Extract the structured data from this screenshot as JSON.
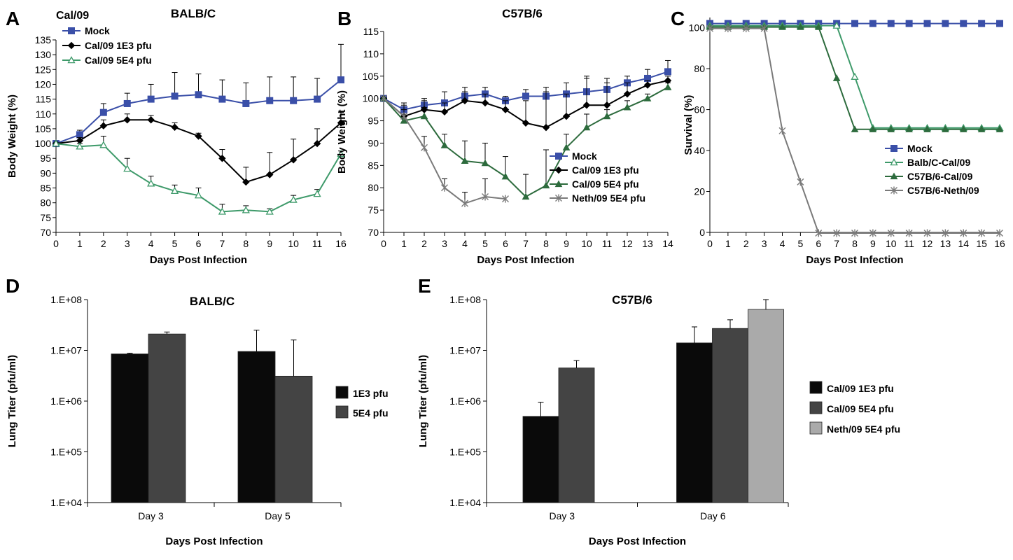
{
  "chart_data": [
    {
      "panel": "A",
      "type": "line",
      "title": "BALB/C",
      "subtitle": "Cal/09",
      "xlabel": "Days Post Infection",
      "ylabel": "Body Weight (%)",
      "x": [
        "0",
        "1",
        "2",
        "3",
        "4",
        "5",
        "6",
        "7",
        "8",
        "9",
        "10",
        "11",
        "16"
      ],
      "ylim": [
        70,
        135
      ],
      "yticks": [
        70,
        75,
        80,
        85,
        90,
        95,
        100,
        105,
        110,
        115,
        120,
        125,
        130,
        135
      ],
      "legend_position": "top-left",
      "grid": false,
      "series": [
        {
          "name": "Mock",
          "color": "#3a4fa8",
          "marker": "square-filled",
          "values": [
            100,
            103,
            110.5,
            113.5,
            115,
            116,
            116.5,
            115,
            113.5,
            114.5,
            114.5,
            115,
            121.5
          ],
          "errors": [
            0,
            1.5,
            3,
            3.5,
            5,
            8,
            7,
            6.5,
            7,
            8,
            8,
            7,
            12
          ]
        },
        {
          "name": "Cal/09 1E3 pfu",
          "color": "#000000",
          "marker": "diamond-filled",
          "values": [
            100,
            101,
            106,
            108,
            108,
            105.5,
            102.5,
            95,
            87,
            89.5,
            94.5,
            100,
            107
          ],
          "errors": [
            0,
            1,
            2,
            2,
            1.5,
            1.5,
            1,
            3,
            5,
            7.5,
            7,
            5,
            3.5
          ]
        },
        {
          "name": "Cal/09 5E4 pfu",
          "color": "#3e9a6a",
          "marker": "triangle-open",
          "values": [
            100,
            99,
            99.5,
            91.5,
            86.5,
            84,
            82.5,
            77,
            77.5,
            77,
            81,
            83,
            96.5
          ],
          "errors": [
            0,
            1,
            3,
            3.5,
            2.5,
            2,
            2.5,
            2.5,
            1.5,
            1,
            1.5,
            1.5,
            1
          ]
        }
      ]
    },
    {
      "panel": "B",
      "type": "line",
      "title": "C57B/6",
      "xlabel": "Days Post Infection",
      "ylabel": "Body Weight (%)",
      "x": [
        "0",
        "1",
        "2",
        "3",
        "4",
        "5",
        "6",
        "7",
        "8",
        "9",
        "10",
        "11",
        "12",
        "13",
        "14"
      ],
      "ylim": [
        70,
        115
      ],
      "yticks": [
        70,
        75,
        80,
        85,
        90,
        95,
        100,
        105,
        110,
        115
      ],
      "legend_position": "right",
      "grid": false,
      "series": [
        {
          "name": "Mock",
          "color": "#3a4fa8",
          "marker": "square-filled",
          "values": [
            100,
            97.5,
            98.5,
            99,
            100.5,
            101,
            99.5,
            100.5,
            100.5,
            101,
            101.5,
            102,
            103.5,
            104.5,
            106
          ],
          "errors": [
            0,
            1.5,
            1.5,
            2.5,
            2,
            1.5,
            1,
            1.5,
            2,
            2.5,
            3.5,
            2.5,
            1.5,
            2,
            2.5
          ]
        },
        {
          "name": "Cal/09 1E3 pfu",
          "color": "#000000",
          "marker": "diamond-filled",
          "values": [
            100,
            96,
            97.5,
            97,
            99.5,
            99,
            97.5,
            94.5,
            93.5,
            96,
            98.5,
            98.5,
            101,
            103,
            104
          ],
          "errors": [
            0,
            1.5,
            2,
            2,
            2,
            2,
            2,
            5,
            8,
            5,
            6,
            5,
            2.5,
            1,
            1
          ]
        },
        {
          "name": "Cal/09 5E4 pfu",
          "color": "#2d6b3d",
          "marker": "triangle-filled",
          "values": [
            100,
            95,
            96,
            89.5,
            86,
            85.5,
            82.5,
            78,
            80.5,
            89,
            93.5,
            96,
            98,
            100,
            102.5
          ],
          "errors": [
            0,
            1,
            2,
            2.5,
            4.5,
            4.5,
            4.5,
            5,
            8,
            3,
            3,
            1.5,
            1.5,
            1,
            1
          ]
        },
        {
          "name": "Neth/09 5E4 pfu",
          "color": "#7a7a7a",
          "marker": "star",
          "values": [
            100,
            96,
            89,
            80,
            76.5,
            78,
            77.5,
            null,
            null,
            null,
            null,
            null,
            null,
            null,
            null
          ],
          "errors": [
            0,
            2.5,
            2.5,
            2,
            2.5,
            4,
            0,
            null,
            null,
            null,
            null,
            null,
            null,
            null,
            null
          ]
        }
      ]
    },
    {
      "panel": "C",
      "type": "line",
      "xlabel": "Days Post Infection",
      "ylabel": "Survival (%)",
      "x": [
        "0",
        "1",
        "2",
        "3",
        "4",
        "5",
        "6",
        "7",
        "8",
        "9",
        "10",
        "11",
        "12",
        "13",
        "14",
        "15",
        "16"
      ],
      "ylim": [
        0,
        105
      ],
      "yticks": [
        0,
        20,
        40,
        60,
        80,
        100
      ],
      "legend_position": "right",
      "grid": false,
      "series": [
        {
          "name": "Mock",
          "color": "#3a4fa8",
          "marker": "square-filled",
          "values": [
            100,
            100,
            100,
            100,
            100,
            100,
            100,
            100,
            100,
            100,
            100,
            100,
            100,
            100,
            100,
            100,
            100
          ]
        },
        {
          "name": "Balb/C-Cal/09",
          "color": "#3e9a6a",
          "marker": "triangle-open",
          "values": [
            100,
            100,
            100,
            100,
            100,
            100,
            100,
            100,
            75,
            50,
            50,
            50,
            50,
            50,
            50,
            50,
            50
          ]
        },
        {
          "name": "C57B/6-Cal/09",
          "color": "#2d6b3d",
          "marker": "triangle-filled",
          "values": [
            100,
            100,
            100,
            100,
            100,
            100,
            100,
            75,
            50,
            50,
            50,
            50,
            50,
            50,
            50,
            50,
            50
          ]
        },
        {
          "name": "C57B/6-Neth/09",
          "color": "#7a7a7a",
          "marker": "star",
          "values": [
            100,
            100,
            100,
            100,
            50,
            25,
            0,
            0,
            0,
            0,
            0,
            0,
            0,
            0,
            0,
            0,
            0
          ]
        }
      ]
    },
    {
      "panel": "D",
      "type": "bar",
      "title": "BALB/C",
      "xlabel": "Days Post Infection",
      "ylabel": "Lung Titer (pfu/ml)",
      "scale": "log",
      "ylim": [
        10000,
        100000000
      ],
      "yticks": [
        "1.E+04",
        "1.E+05",
        "1.E+06",
        "1.E+07",
        "1.E+08"
      ],
      "categories": [
        "Day 3",
        "Day 5"
      ],
      "legend_position": "right",
      "series": [
        {
          "name": "1E3 pfu",
          "color": "#0a0a0a",
          "values": [
            8500000,
            9500000
          ],
          "err_upper": [
            8800000,
            25000000
          ]
        },
        {
          "name": "5E4 pfu",
          "color": "#444444",
          "values": [
            21000000,
            3100000
          ],
          "err_upper": [
            23000000,
            16000000
          ]
        }
      ]
    },
    {
      "panel": "E",
      "type": "bar",
      "title": "C57B/6",
      "xlabel": "Days Post Infection",
      "ylabel": "Lung Titer (pfu/ml)",
      "scale": "log",
      "ylim": [
        10000,
        100000000
      ],
      "yticks": [
        "1.E+04",
        "1.E+05",
        "1.E+06",
        "1.E+07",
        "1.E+08"
      ],
      "categories": [
        "Day 3",
        "Day 6"
      ],
      "legend_position": "right",
      "series": [
        {
          "name": "Cal/09 1E3 pfu",
          "color": "#0a0a0a",
          "values": [
            500000,
            14000000
          ],
          "err_upper": [
            950000,
            29000000
          ]
        },
        {
          "name": "Cal/09 5E4 pfu",
          "color": "#444444",
          "values": [
            4500000,
            27000000
          ],
          "err_upper": [
            6300000,
            40000000
          ]
        },
        {
          "name": "Neth/09 5E4 pfu",
          "color": "#aaaaaa",
          "values": [
            null,
            64000000
          ],
          "err_upper": [
            null,
            100000000
          ]
        }
      ]
    }
  ]
}
